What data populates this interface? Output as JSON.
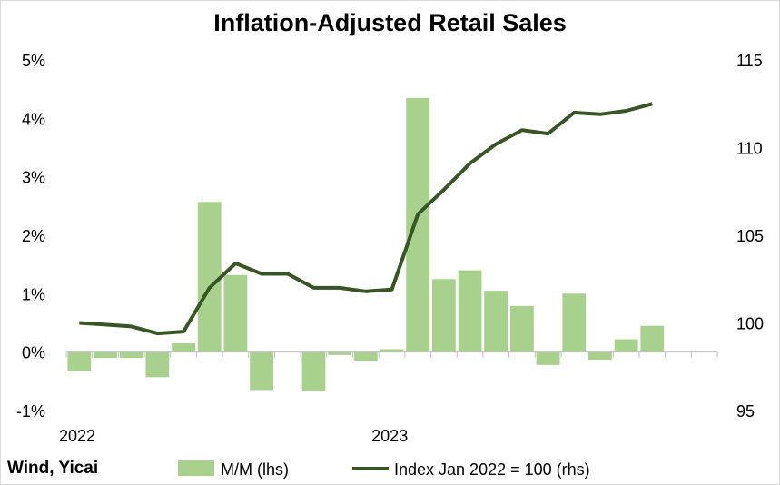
{
  "source": "Wind, Yicai",
  "chart_data": {
    "type": "bar",
    "title": "Inflation-Adjusted Retail Sales",
    "x": [
      "2022-01",
      "2022-02",
      "2022-03",
      "2022-04",
      "2022-05",
      "2022-06",
      "2022-07",
      "2022-08",
      "2022-09",
      "2022-10",
      "2022-11",
      "2022-12",
      "2023-01",
      "2023-02",
      "2023-03",
      "2023-04",
      "2023-05",
      "2023-06",
      "2023-07",
      "2023-08",
      "2023-09",
      "2023-10",
      "2023-11",
      "2023-12",
      "2024-01"
    ],
    "x_tick_labels": [
      {
        "label": "2022",
        "at": "2022-01"
      },
      {
        "label": "2023",
        "at": "2023-01"
      }
    ],
    "left_axis": {
      "ylim": [
        -1,
        5
      ],
      "ticks": [
        "-1%",
        "0%",
        "1%",
        "2%",
        "3%",
        "4%",
        "5%"
      ]
    },
    "right_axis": {
      "ylim": [
        95,
        115
      ],
      "ticks": [
        "95",
        "100",
        "105",
        "110",
        "115"
      ]
    },
    "series": [
      {
        "name": "M/M (lhs)",
        "type": "bar",
        "axis": "left",
        "color": "#a9d18e",
        "values": [
          -0.33,
          -0.1,
          -0.1,
          -0.43,
          0.15,
          2.57,
          1.32,
          -0.65,
          null,
          -0.67,
          -0.05,
          -0.15,
          0.05,
          4.35,
          1.25,
          1.4,
          1.05,
          0.79,
          -0.22,
          1.0,
          -0.13,
          0.22,
          0.45,
          null,
          null
        ]
      },
      {
        "name": "Index Jan 2022 = 100 (rhs)",
        "type": "line",
        "axis": "right",
        "color": "#375623",
        "values": [
          100.0,
          99.9,
          99.8,
          99.4,
          99.5,
          102.0,
          103.4,
          102.8,
          102.8,
          102.0,
          102.0,
          101.8,
          101.9,
          106.2,
          107.6,
          109.1,
          110.2,
          111.0,
          110.8,
          112.0,
          111.9,
          112.1,
          112.5,
          null,
          null
        ]
      }
    ],
    "legend_position": "bottom"
  },
  "colors": {
    "bars": "#a9d18e",
    "line": "#375623",
    "axis": "#bfbfbf"
  }
}
